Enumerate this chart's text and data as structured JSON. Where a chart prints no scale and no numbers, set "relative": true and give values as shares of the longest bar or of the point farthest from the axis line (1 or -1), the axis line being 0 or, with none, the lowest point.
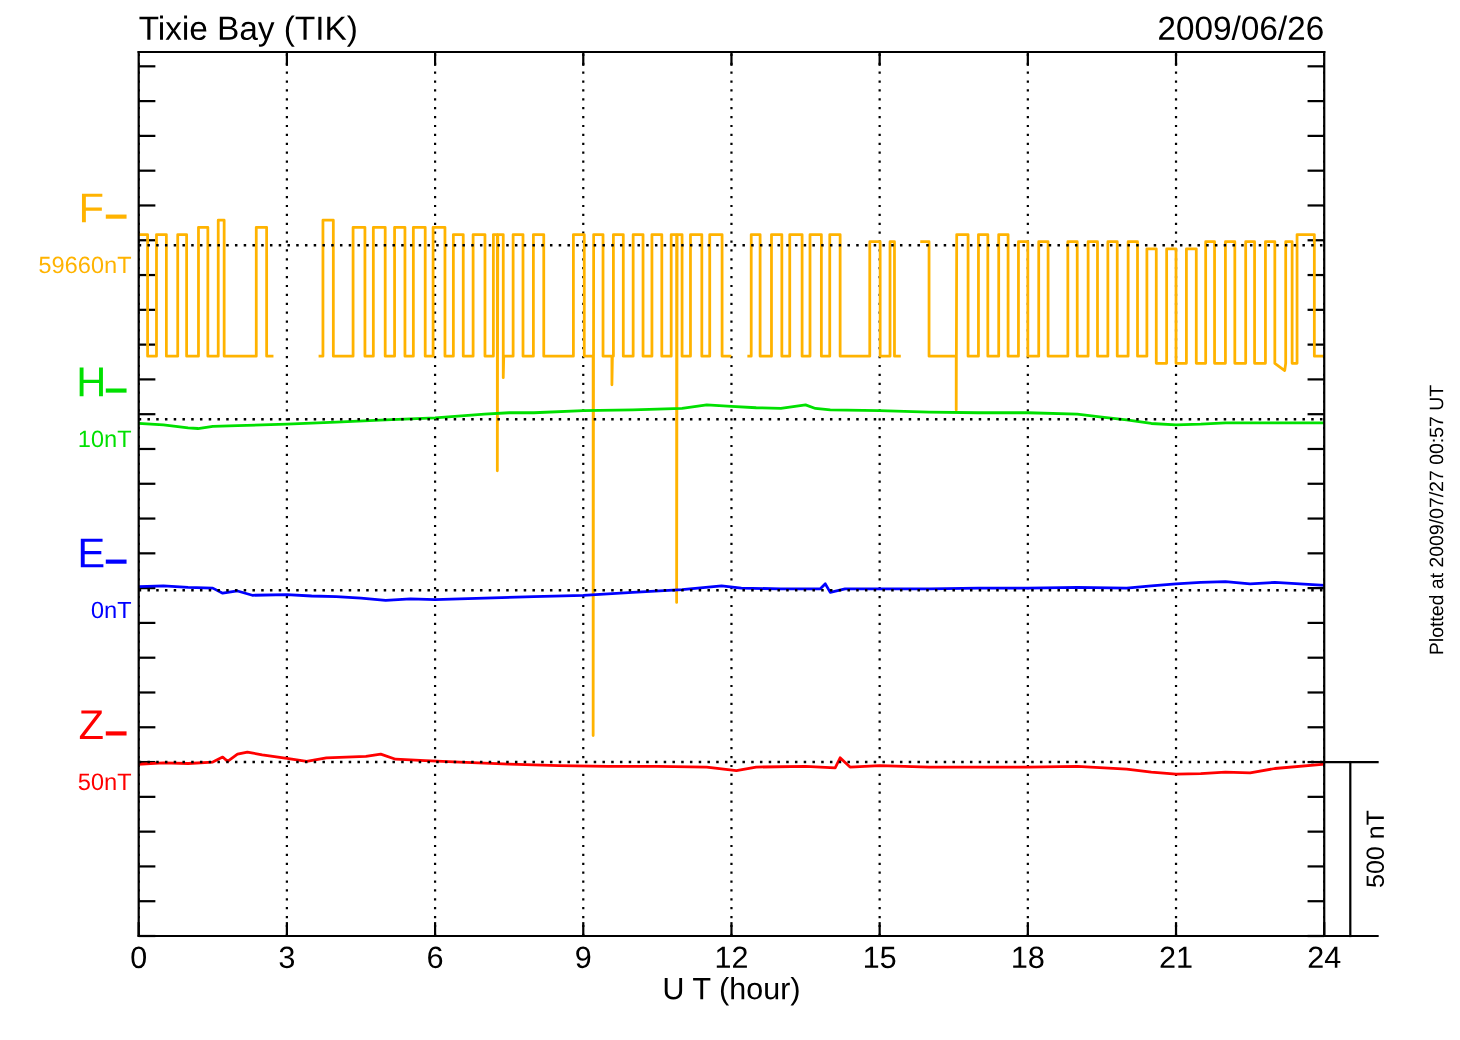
{
  "chart_data": {
    "type": "line",
    "relative": true,
    "title": "Tixie Bay (TIK)",
    "subtitle": "2009/06/26",
    "xlabel": "U T (hour)",
    "xlim": [
      0,
      24
    ],
    "xticks": [
      0,
      3,
      6,
      9,
      12,
      15,
      18,
      21,
      24
    ],
    "grid": "x",
    "legend": "left",
    "line_style": "solid",
    "series": [
      {
        "name": "F",
        "color": "#ffb300",
        "x": [
          0.0,
          0.18,
          0.18,
          0.36,
          0.36,
          0.56,
          0.56,
          0.79,
          0.79,
          0.97,
          0.97,
          1.21,
          1.21,
          1.4,
          1.4,
          1.61,
          1.61,
          1.73,
          1.73,
          2.38,
          2.38,
          2.59,
          2.59,
          2.7,
          2.71,
          3.67,
          3.73,
          3.73,
          3.94,
          3.94,
          4.34,
          4.34,
          4.58,
          4.58,
          4.75,
          4.75,
          4.99,
          4.99,
          5.18,
          5.18,
          5.39,
          5.39,
          5.56,
          5.56,
          5.8,
          5.8,
          5.96,
          5.96,
          6.2,
          6.2,
          6.37,
          6.37,
          6.57,
          6.57,
          6.77,
          6.77,
          7.01,
          7.01,
          7.18,
          7.18,
          7.26,
          7.26,
          7.27,
          7.38,
          7.38,
          7.39,
          7.58,
          7.58,
          7.78,
          7.78,
          7.99,
          7.99,
          8.2,
          8.2,
          8.8,
          8.8,
          9.02,
          9.02,
          9.2,
          9.2,
          9.21,
          9.4,
          9.4,
          9.58,
          9.58,
          9.59,
          9.61,
          9.61,
          9.81,
          9.81,
          10.01,
          10.01,
          10.21,
          10.21,
          10.39,
          10.39,
          10.59,
          10.59,
          10.78,
          10.78,
          10.89,
          10.89,
          10.9,
          11.0,
          11.0,
          11.17,
          11.17,
          11.4,
          11.4,
          11.56,
          11.56,
          11.81,
          11.81,
          11.97,
          11.98,
          12.35,
          12.4,
          12.4,
          12.58,
          12.58,
          12.81,
          12.81,
          13.02,
          13.02,
          13.18,
          13.18,
          13.43,
          13.43,
          13.59,
          13.59,
          13.82,
          13.82,
          13.99,
          13.99,
          14.2,
          14.2,
          14.8,
          14.8,
          15.01,
          15.01,
          15.21,
          15.21,
          15.3,
          15.3,
          15.4,
          15.41,
          15.85,
          16.0,
          16.0,
          16.55,
          16.55,
          16.56,
          16.79,
          16.79,
          17.0,
          17.0,
          17.19,
          17.19,
          17.41,
          17.41,
          17.6,
          17.6,
          17.81,
          17.81,
          18.0,
          18.0,
          18.22,
          18.22,
          18.41,
          18.41,
          18.81,
          18.81,
          19.0,
          19.0,
          19.22,
          19.22,
          19.41,
          19.41,
          19.62,
          19.62,
          19.81,
          19.81,
          20.03,
          20.03,
          20.22,
          20.22,
          20.41,
          20.41,
          20.6,
          20.6,
          20.81,
          20.81,
          21.0,
          21.0,
          21.21,
          21.21,
          21.41,
          21.41,
          21.6,
          21.6,
          21.78,
          21.78,
          22.0,
          22.0,
          22.19,
          22.19,
          22.41,
          22.41,
          22.59,
          22.59,
          22.81,
          22.81,
          23.0,
          23.0,
          23.2,
          23.22,
          23.22,
          23.35,
          23.35,
          23.45,
          23.45,
          23.8,
          23.8,
          24.0
        ],
        "values": [
          0.98,
          0.98,
          0.81,
          0.81,
          0.98,
          0.98,
          0.81,
          0.81,
          0.98,
          0.98,
          0.81,
          0.81,
          0.99,
          0.99,
          0.81,
          0.81,
          1.0,
          1.0,
          0.81,
          0.81,
          0.99,
          0.99,
          0.81,
          0.81,
          null,
          0.81,
          0.81,
          1.0,
          1.0,
          0.81,
          0.81,
          0.99,
          0.99,
          0.81,
          0.81,
          0.99,
          0.99,
          0.81,
          0.81,
          0.99,
          0.99,
          0.81,
          0.81,
          0.99,
          0.99,
          0.81,
          0.81,
          0.99,
          0.99,
          0.81,
          0.81,
          0.98,
          0.98,
          0.81,
          0.81,
          0.98,
          0.98,
          0.81,
          0.81,
          0.98,
          0.98,
          0.65,
          0.98,
          0.98,
          0.78,
          0.81,
          0.81,
          0.98,
          0.98,
          0.81,
          0.81,
          0.98,
          0.98,
          0.81,
          0.81,
          0.98,
          0.98,
          0.81,
          0.81,
          0.28,
          0.98,
          0.98,
          0.81,
          0.81,
          0.77,
          0.81,
          0.81,
          0.98,
          0.98,
          0.81,
          0.81,
          0.98,
          0.98,
          0.81,
          0.81,
          0.98,
          0.98,
          0.81,
          0.81,
          0.98,
          0.98,
          0.466,
          0.98,
          0.98,
          0.81,
          0.81,
          0.98,
          0.98,
          0.81,
          0.81,
          0.98,
          0.98,
          0.81,
          0.81,
          null,
          0.81,
          0.81,
          0.98,
          0.98,
          0.81,
          0.81,
          0.98,
          0.98,
          0.81,
          0.81,
          0.98,
          0.98,
          0.81,
          0.81,
          0.98,
          0.98,
          0.81,
          0.81,
          0.98,
          0.98,
          0.81,
          0.81,
          0.97,
          0.97,
          0.81,
          0.81,
          0.97,
          0.97,
          0.81,
          0.81,
          null,
          0.97,
          0.97,
          0.81,
          0.81,
          0.735,
          0.98,
          0.98,
          0.81,
          0.81,
          0.98,
          0.98,
          0.81,
          0.81,
          0.98,
          0.98,
          0.81,
          0.81,
          0.97,
          0.97,
          0.81,
          0.81,
          0.97,
          0.97,
          0.81,
          0.81,
          0.97,
          0.97,
          0.81,
          0.81,
          0.97,
          0.97,
          0.81,
          0.81,
          0.97,
          0.97,
          0.81,
          0.81,
          0.97,
          0.97,
          0.81,
          0.81,
          0.96,
          0.96,
          0.8,
          0.8,
          0.96,
          0.96,
          0.8,
          0.8,
          0.96,
          0.96,
          0.8,
          0.8,
          0.97,
          0.97,
          0.8,
          0.8,
          0.97,
          0.97,
          0.8,
          0.8,
          0.97,
          0.97,
          0.8,
          0.8,
          0.97,
          0.97,
          0.8,
          0.79,
          0.8,
          0.97,
          0.97,
          0.8,
          0.8,
          0.98,
          0.98,
          0.81,
          0.81
        ]
      },
      {
        "name": "H",
        "color": "#00e000",
        "x": [
          0,
          0.5,
          1.0,
          1.2,
          1.5,
          2,
          3,
          4,
          5,
          6,
          7,
          7.5,
          8,
          9,
          10,
          11,
          11.5,
          12,
          12.5,
          13,
          13.5,
          13.7,
          14,
          15,
          16,
          17,
          18,
          19,
          19.5,
          20,
          20.5,
          21,
          21.5,
          22,
          23,
          24
        ],
        "values": [
          0.716,
          0.714,
          0.71,
          0.709,
          0.712,
          0.713,
          0.715,
          0.718,
          0.721,
          0.724,
          0.729,
          0.731,
          0.731,
          0.734,
          0.735,
          0.737,
          0.742,
          0.74,
          0.738,
          0.737,
          0.742,
          0.737,
          0.735,
          0.734,
          0.732,
          0.731,
          0.731,
          0.729,
          0.725,
          0.721,
          0.716,
          0.714,
          0.715,
          0.717,
          0.717,
          0.717
        ]
      },
      {
        "name": "E",
        "color": "#0000ff",
        "x": [
          0,
          0.5,
          1.0,
          1.5,
          1.7,
          2.0,
          2.3,
          3,
          3.5,
          4,
          4.5,
          5,
          5.5,
          6,
          7,
          8,
          9,
          10,
          11,
          11.8,
          12.2,
          13,
          13.8,
          13.9,
          14.0,
          14.3,
          15,
          16,
          17,
          18,
          19,
          20,
          20.5,
          21,
          21.5,
          22,
          22.5,
          23,
          24
        ],
        "values": [
          0.488,
          0.489,
          0.487,
          0.486,
          0.479,
          0.482,
          0.476,
          0.477,
          0.475,
          0.474,
          0.472,
          0.469,
          0.471,
          0.47,
          0.472,
          0.474,
          0.476,
          0.48,
          0.484,
          0.489,
          0.486,
          0.485,
          0.485,
          0.492,
          0.48,
          0.485,
          0.485,
          0.485,
          0.486,
          0.486,
          0.487,
          0.486,
          0.489,
          0.492,
          0.494,
          0.495,
          0.492,
          0.494,
          0.49
        ]
      },
      {
        "name": "Z",
        "color": "#ff0000",
        "x": [
          0,
          0.5,
          1,
          1.5,
          1.7,
          1.8,
          2.0,
          2.2,
          2.5,
          3,
          3.4,
          3.8,
          4.2,
          4.6,
          4.9,
          5.2,
          5.8,
          6.5,
          7.5,
          8.5,
          9.5,
          10.5,
          11.5,
          12.1,
          12.5,
          13.5,
          14.1,
          14.2,
          14.4,
          15,
          16,
          17,
          18,
          19,
          20,
          20.5,
          21,
          21.5,
          22,
          22.5,
          23,
          24
        ],
        "values": [
          0.24,
          0.242,
          0.241,
          0.243,
          0.25,
          0.244,
          0.254,
          0.257,
          0.253,
          0.248,
          0.244,
          0.249,
          0.25,
          0.251,
          0.254,
          0.247,
          0.245,
          0.243,
          0.24,
          0.238,
          0.237,
          0.237,
          0.236,
          0.231,
          0.236,
          0.237,
          0.235,
          0.249,
          0.236,
          0.238,
          0.236,
          0.236,
          0.236,
          0.237,
          0.233,
          0.229,
          0.226,
          0.227,
          0.229,
          0.228,
          0.234,
          0.24
        ]
      }
    ],
    "ref_lines": [
      {
        "axis": "y",
        "value": 0.965,
        "label": "59660nT",
        "color": "#000000",
        "line_style": "dotted"
      },
      {
        "axis": "y",
        "value": 0.722,
        "label": "10nT",
        "color": "#000000",
        "line_style": "dotted"
      },
      {
        "axis": "y",
        "value": 0.483,
        "label": "0nT",
        "color": "#000000",
        "line_style": "dotted"
      },
      {
        "axis": "y",
        "value": 0.243,
        "label": "50nT",
        "color": "#000000",
        "line_style": "dotted"
      }
    ],
    "annotations": [
      "500 nT",
      "Plotted at 2009/07/27 00:57 UT"
    ]
  }
}
